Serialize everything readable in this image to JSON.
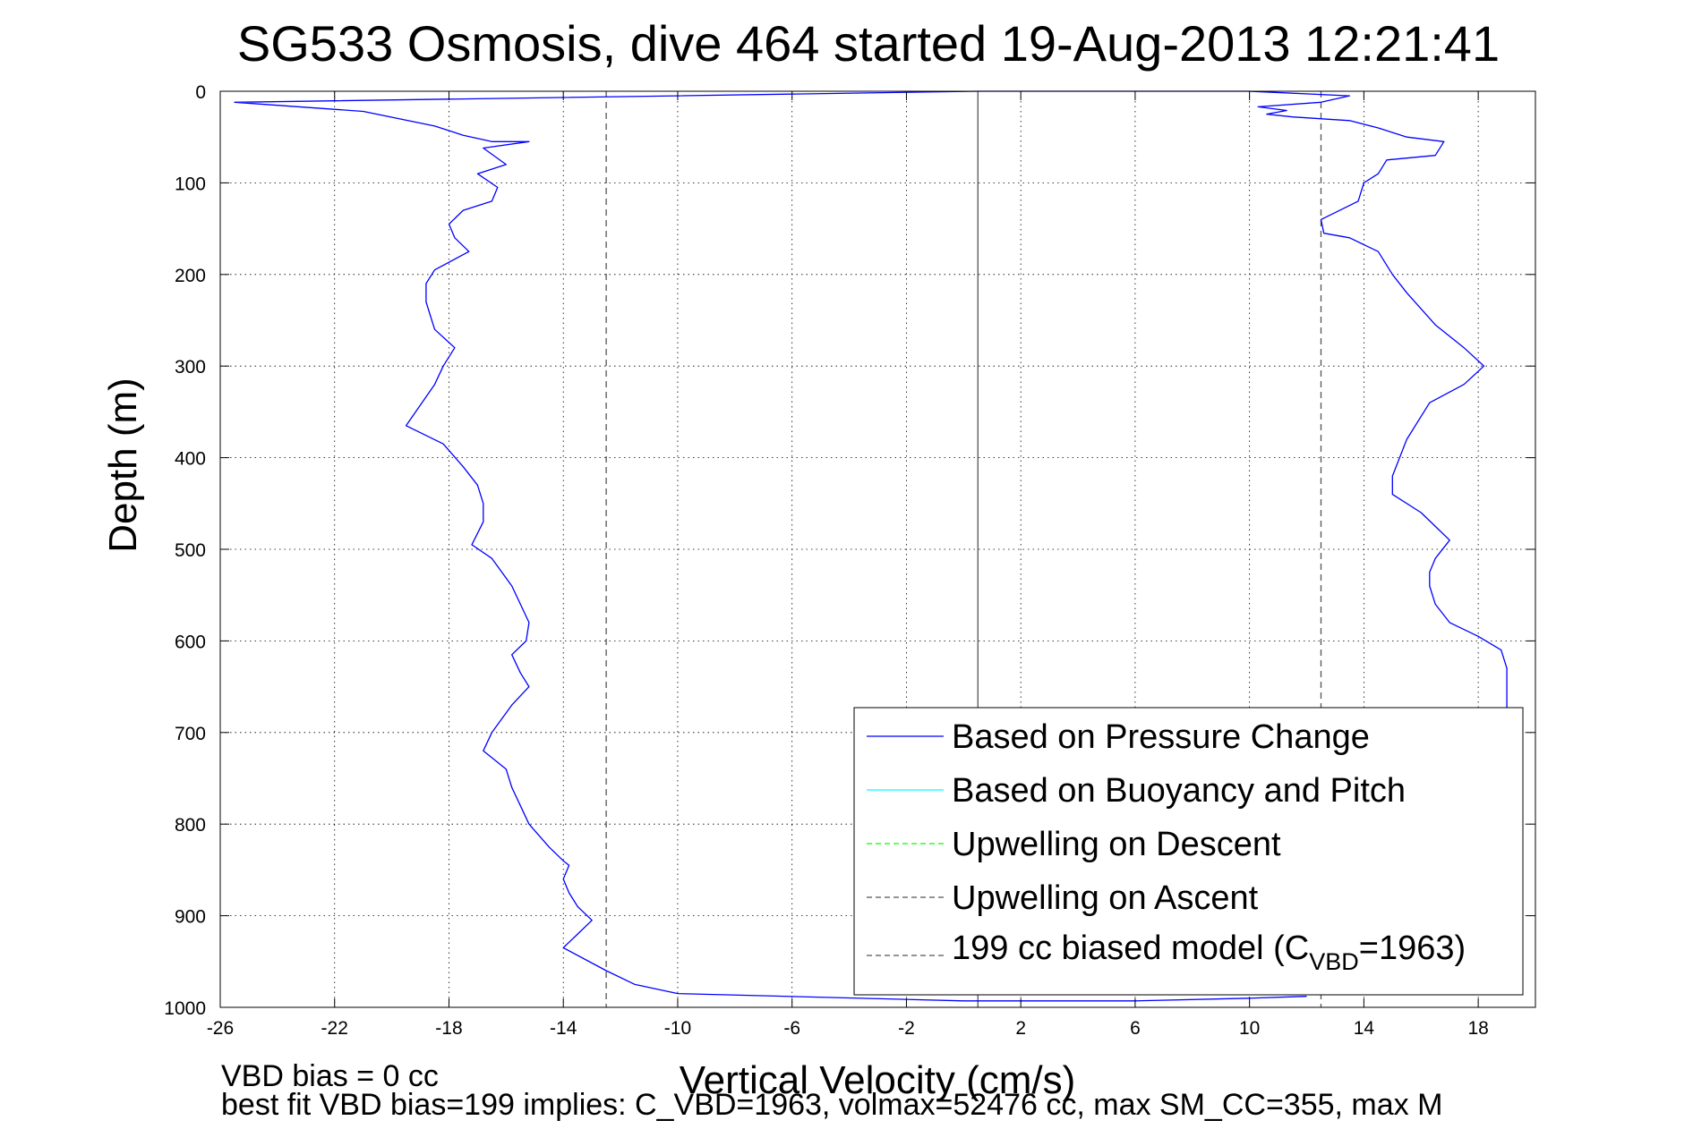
{
  "chart_data": {
    "type": "line",
    "title": "SG533 Osmosis, dive 464 started 19-Aug-2013 12:21:41",
    "xlabel": "Vertical Velocity (cm/s)",
    "ylabel": "Depth (m)",
    "xlim": [
      -26,
      20
    ],
    "ylim": [
      0,
      1000
    ],
    "y_reversed": true,
    "grid": true,
    "x_ticks": [
      -26,
      -22,
      -18,
      -14,
      -10,
      -6,
      -2,
      2,
      6,
      10,
      14,
      18
    ],
    "y_ticks": [
      0,
      100,
      200,
      300,
      400,
      500,
      600,
      700,
      800,
      900,
      1000
    ],
    "legend_position": "bottom-right",
    "legend": [
      {
        "label": "Based on Pressure Change",
        "style": "solid",
        "color": "#0000ff"
      },
      {
        "label": "Based on Buoyancy and Pitch",
        "style": "solid",
        "color": "#00ffff"
      },
      {
        "label": "Upwelling on Descent",
        "style": "dashed",
        "color": "#00ff00"
      },
      {
        "label": "Upwelling on Ascent",
        "style": "dashed",
        "color": "#555555"
      },
      {
        "label_pre": "199 cc biased model (C",
        "label_sub": "VBD",
        "label_post": "=1963)",
        "style": "dashed",
        "color": "#555555"
      }
    ],
    "reference_lines": [
      {
        "x": -12.5,
        "style": "dashed",
        "color": "#555555"
      },
      {
        "x": 0.5,
        "style": "solid",
        "color": "#555555"
      },
      {
        "x": 12.5,
        "style": "dashed",
        "color": "#555555"
      }
    ],
    "series": [
      {
        "label": "Based on Pressure Change",
        "color": "#0000ff",
        "points": [
          [
            0.5,
            0
          ],
          [
            -10,
            5
          ],
          [
            -25.5,
            12
          ],
          [
            -21,
            22
          ],
          [
            -18.5,
            38
          ],
          [
            -17.5,
            48
          ],
          [
            -16.5,
            55
          ],
          [
            -15.2,
            55
          ],
          [
            -16.8,
            62
          ],
          [
            -16,
            80
          ],
          [
            -17,
            90
          ],
          [
            -16.3,
            105
          ],
          [
            -16.5,
            120
          ],
          [
            -17.5,
            130
          ],
          [
            -18,
            145
          ],
          [
            -17.8,
            160
          ],
          [
            -17.3,
            175
          ],
          [
            -18.5,
            195
          ],
          [
            -18.8,
            210
          ],
          [
            -18.8,
            230
          ],
          [
            -18.5,
            260
          ],
          [
            -17.8,
            280
          ],
          [
            -18.2,
            300
          ],
          [
            -18.5,
            320
          ],
          [
            -19.5,
            365
          ],
          [
            -18.2,
            385
          ],
          [
            -17.5,
            410
          ],
          [
            -17,
            430
          ],
          [
            -16.8,
            450
          ],
          [
            -16.8,
            470
          ],
          [
            -17.2,
            495
          ],
          [
            -16.5,
            510
          ],
          [
            -15.8,
            540
          ],
          [
            -15.5,
            560
          ],
          [
            -15.2,
            580
          ],
          [
            -15.3,
            600
          ],
          [
            -15.8,
            615
          ],
          [
            -15.5,
            635
          ],
          [
            -15.2,
            650
          ],
          [
            -15.8,
            670
          ],
          [
            -16.5,
            700
          ],
          [
            -16.8,
            720
          ],
          [
            -16,
            740
          ],
          [
            -15.8,
            760
          ],
          [
            -15.5,
            780
          ],
          [
            -15.2,
            800
          ],
          [
            -14.5,
            825
          ],
          [
            -14,
            840
          ],
          [
            -13.8,
            845
          ],
          [
            -14,
            860
          ],
          [
            -13.8,
            875
          ],
          [
            -13.5,
            890
          ],
          [
            -13,
            905
          ],
          [
            -13.5,
            920
          ],
          [
            -14,
            935
          ],
          [
            -12.5,
            960
          ],
          [
            -11.5,
            975
          ],
          [
            -10,
            985
          ],
          [
            0,
            993
          ],
          [
            6,
            993
          ],
          [
            10,
            990
          ],
          [
            12,
            988
          ]
        ]
      },
      {
        "label": "Based on Pressure Change (ascent)",
        "color": "#0000ff",
        "points": [
          [
            0.5,
            0
          ],
          [
            10,
            0
          ],
          [
            13.5,
            5
          ],
          [
            12.5,
            12
          ],
          [
            10.3,
            17
          ],
          [
            11.3,
            21
          ],
          [
            10.6,
            25
          ],
          [
            11.5,
            28
          ],
          [
            13.5,
            32
          ],
          [
            14.5,
            40
          ],
          [
            15.5,
            50
          ],
          [
            16.8,
            55
          ],
          [
            16.5,
            70
          ],
          [
            14.8,
            75
          ],
          [
            14.5,
            90
          ],
          [
            14,
            100
          ],
          [
            13.8,
            120
          ],
          [
            12.5,
            140
          ],
          [
            12.6,
            155
          ],
          [
            13.5,
            160
          ],
          [
            14.5,
            175
          ],
          [
            15,
            200
          ],
          [
            15.5,
            220
          ],
          [
            16.5,
            255
          ],
          [
            17.5,
            280
          ],
          [
            18.2,
            300
          ],
          [
            17.5,
            320
          ],
          [
            16.3,
            340
          ],
          [
            15.5,
            380
          ],
          [
            15,
            420
          ],
          [
            15,
            440
          ],
          [
            16,
            460
          ],
          [
            16.5,
            475
          ],
          [
            17,
            490
          ],
          [
            16.5,
            510
          ],
          [
            16.3,
            525
          ],
          [
            16.3,
            540
          ],
          [
            16.5,
            560
          ],
          [
            17,
            580
          ],
          [
            18,
            595
          ],
          [
            18.8,
            610
          ],
          [
            19,
            630
          ],
          [
            19,
            650
          ],
          [
            19,
            680
          ]
        ]
      }
    ]
  },
  "footer": {
    "line1": "VBD bias = 0 cc",
    "line2": "best fit VBD bias=199 implies: C_VBD=1963, volmax=52476 cc, max SM_CC=355, max M"
  }
}
